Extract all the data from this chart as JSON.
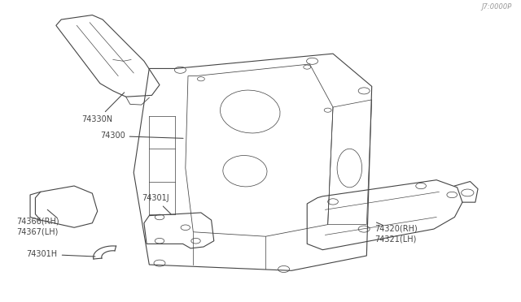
{
  "bg_color": "#ffffff",
  "line_color": "#444444",
  "figure_size": [
    6.4,
    3.72
  ],
  "dpi": 100,
  "watermark": "J7:0000P",
  "label_fontsize": 7.0,
  "parts": [
    {
      "id": "74330N",
      "label": "74330N"
    },
    {
      "id": "74300",
      "label": "74300"
    },
    {
      "id": "74301J",
      "label": "74301J"
    },
    {
      "id": "74366_67",
      "label": "74366(RH)\n74367(LH)"
    },
    {
      "id": "74301H",
      "label": "74301H"
    },
    {
      "id": "74320_21",
      "label": "74320(RH)\n74321(LH)"
    }
  ]
}
